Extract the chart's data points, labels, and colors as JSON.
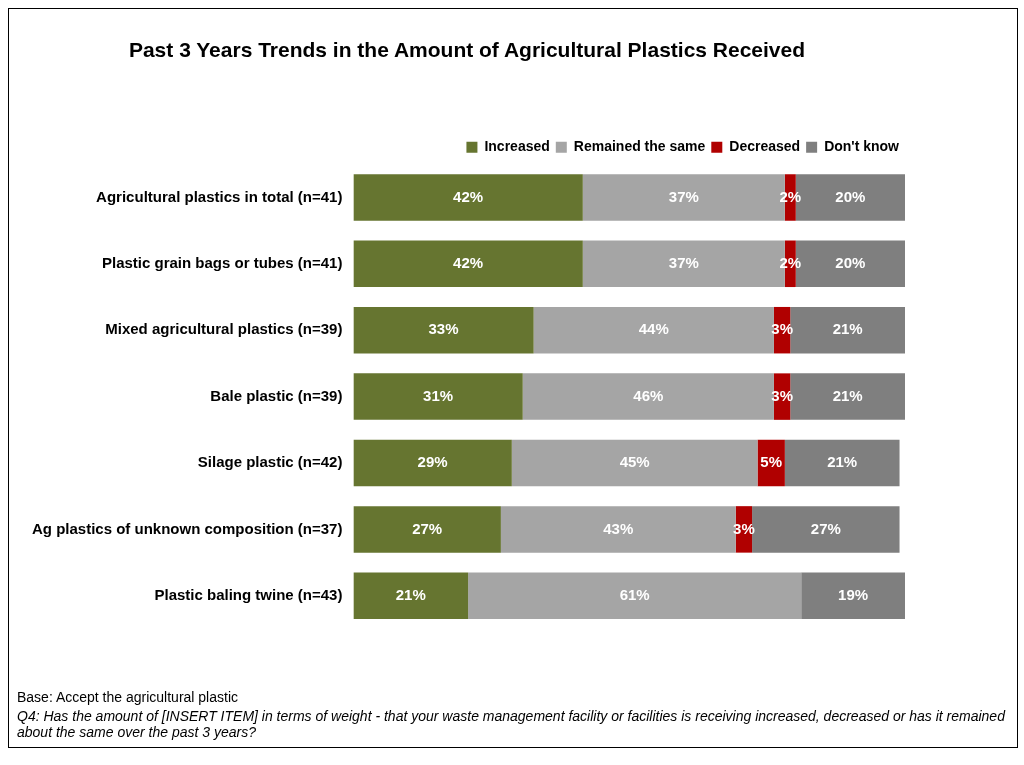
{
  "chart_data": {
    "type": "bar",
    "orientation": "horizontal",
    "stacked": true,
    "title": "Past 3 Years Trends in the Amount of Agricultural Plastics Received",
    "categories": [
      "Agricultural plastics in total (n=41)",
      "Plastic grain bags or tubes (n=41)",
      "Mixed agricultural plastics (n=39)",
      "Bale plastic (n=39)",
      "Silage plastic (n=42)",
      "Ag plastics of unknown composition (n=37)",
      "Plastic baling twine (n=43)"
    ],
    "series": [
      {
        "name": "Increased",
        "color": "#667530",
        "values": [
          42,
          42,
          33,
          31,
          29,
          27,
          21
        ],
        "value_labels": [
          "42%",
          "42%",
          "33%",
          "31%",
          "29%",
          "27%",
          "21%"
        ]
      },
      {
        "name": "Remained the same",
        "color": "#a5a5a5",
        "values": [
          37,
          37,
          44,
          46,
          45,
          43,
          61
        ],
        "value_labels": [
          "37%",
          "37%",
          "44%",
          "46%",
          "45%",
          "43%",
          "61%"
        ]
      },
      {
        "name": "Decreased",
        "color": "#b00000",
        "values": [
          2,
          2,
          3,
          3,
          5,
          3,
          null
        ],
        "value_labels": [
          "2%",
          "2%",
          "3%",
          "3%",
          "5%",
          "3%",
          null
        ]
      },
      {
        "name": "Don't know",
        "color": "#7f7f7f",
        "values": [
          20,
          20,
          21,
          21,
          21,
          27,
          19
        ],
        "value_labels": [
          "20%",
          "20%",
          "21%",
          "21%",
          "21%",
          "27%",
          "19%"
        ]
      }
    ],
    "tick_labels": false,
    "legend": "top right",
    "annotations": [
      "Base: Accept the agricultural plastic",
      "Q4: Has the amount of [INSERT ITEM] in terms of weight - that your waste management facility or facilities is receiving increased, decreased or has it remained about the same over the past 3 years?"
    ]
  }
}
